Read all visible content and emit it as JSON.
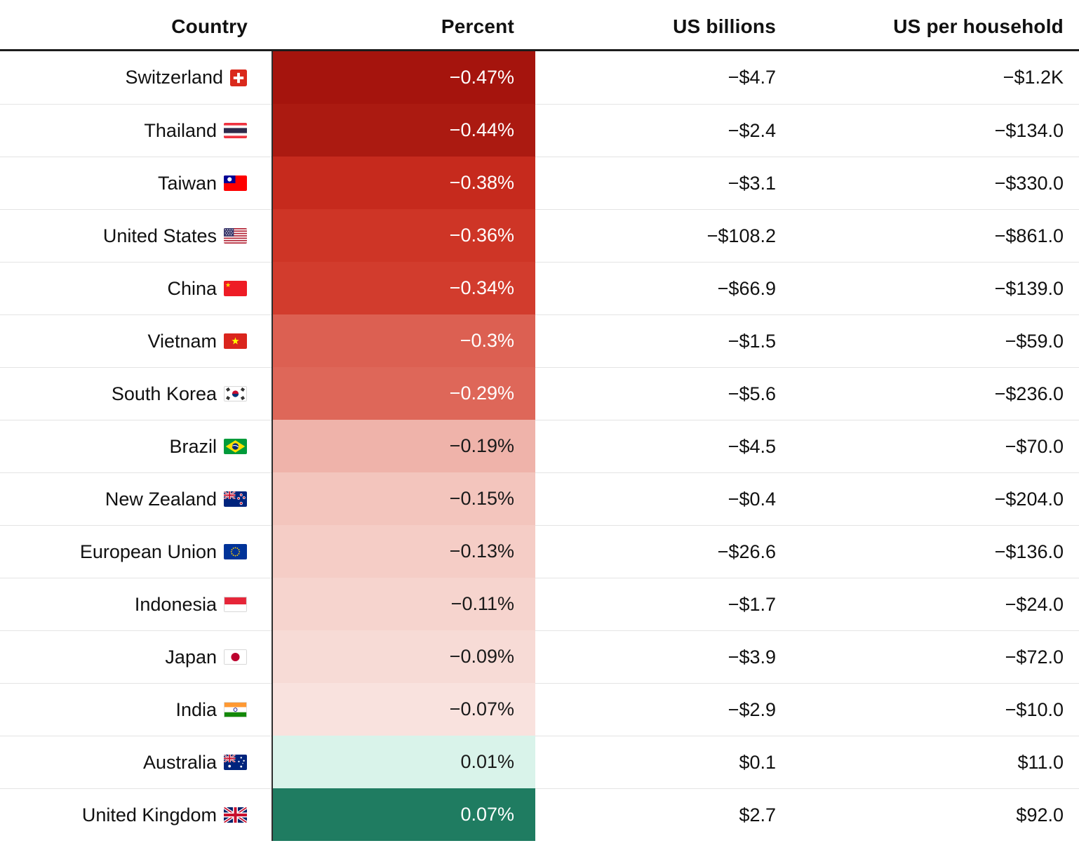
{
  "header": {
    "columns": [
      {
        "label": "Country"
      },
      {
        "label": "Percent"
      },
      {
        "label": "US billions"
      },
      {
        "label": "US per household"
      }
    ]
  },
  "chart_data": {
    "type": "table",
    "title": "",
    "columns": [
      "Country",
      "Percent",
      "US billions",
      "US per household"
    ],
    "color_scale": {
      "negative_dark": "#a5140d",
      "negative_light": "#f9e2de",
      "positive_light": "#d9f3ea",
      "positive_dark": "#1f7c61"
    },
    "rows": [
      {
        "country": "Switzerland",
        "flag": "switzerland-flag",
        "percent": "−0.47%",
        "percent_value": -0.47,
        "us_billions": "−$4.7",
        "us_billions_value": -4.7,
        "us_per_household": "−$1.2K",
        "us_per_household_value": -1200,
        "cell_color": "#a5140d",
        "text_color": "#ffffff"
      },
      {
        "country": "Thailand",
        "flag": "thailand-flag",
        "percent": "−0.44%",
        "percent_value": -0.44,
        "us_billions": "−$2.4",
        "us_billions_value": -2.4,
        "us_per_household": "−$134.0",
        "us_per_household_value": -134,
        "cell_color": "#ab1a11",
        "text_color": "#ffffff"
      },
      {
        "country": "Taiwan",
        "flag": "taiwan-flag",
        "percent": "−0.38%",
        "percent_value": -0.38,
        "us_billions": "−$3.1",
        "us_billions_value": -3.1,
        "us_per_household": "−$330.0",
        "us_per_household_value": -330,
        "cell_color": "#c62a1d",
        "text_color": "#ffffff"
      },
      {
        "country": "United States",
        "flag": "united-states-flag",
        "percent": "−0.36%",
        "percent_value": -0.36,
        "us_billions": "−$108.2",
        "us_billions_value": -108.2,
        "us_per_household": "−$861.0",
        "us_per_household_value": -861,
        "cell_color": "#ce3526",
        "text_color": "#ffffff"
      },
      {
        "country": "China",
        "flag": "china-flag",
        "percent": "−0.34%",
        "percent_value": -0.34,
        "us_billions": "−$66.9",
        "us_billions_value": -66.9,
        "us_per_household": "−$139.0",
        "us_per_household_value": -139,
        "cell_color": "#d23c2d",
        "text_color": "#ffffff"
      },
      {
        "country": "Vietnam",
        "flag": "vietnam-flag",
        "percent": "−0.3%",
        "percent_value": -0.3,
        "us_billions": "−$1.5",
        "us_billions_value": -1.5,
        "us_per_household": "−$59.0",
        "us_per_household_value": -59,
        "cell_color": "#dc6052",
        "text_color": "#ffffff"
      },
      {
        "country": "South Korea",
        "flag": "south-korea-flag",
        "percent": "−0.29%",
        "percent_value": -0.29,
        "us_billions": "−$5.6",
        "us_billions_value": -5.6,
        "us_per_household": "−$236.0",
        "us_per_household_value": -236,
        "cell_color": "#de6759",
        "text_color": "#ffffff"
      },
      {
        "country": "Brazil",
        "flag": "brazil-flag",
        "percent": "−0.19%",
        "percent_value": -0.19,
        "us_billions": "−$4.5",
        "us_billions_value": -4.5,
        "us_per_household": "−$70.0",
        "us_per_household_value": -70,
        "cell_color": "#efb3aa",
        "text_color": "#1a1a1a"
      },
      {
        "country": "New Zealand",
        "flag": "new-zealand-flag",
        "percent": "−0.15%",
        "percent_value": -0.15,
        "us_billions": "−$0.4",
        "us_billions_value": -0.4,
        "us_per_household": "−$204.0",
        "us_per_household_value": -204,
        "cell_color": "#f3c5bd",
        "text_color": "#1a1a1a"
      },
      {
        "country": "European Union",
        "flag": "european-union-flag",
        "percent": "−0.13%",
        "percent_value": -0.13,
        "us_billions": "−$26.6",
        "us_billions_value": -26.6,
        "us_per_household": "−$136.0",
        "us_per_household_value": -136,
        "cell_color": "#f5cdc6",
        "text_color": "#1a1a1a"
      },
      {
        "country": "Indonesia",
        "flag": "indonesia-flag",
        "percent": "−0.11%",
        "percent_value": -0.11,
        "us_billions": "−$1.7",
        "us_billions_value": -1.7,
        "us_per_household": "−$24.0",
        "us_per_household_value": -24,
        "cell_color": "#f6d4ce",
        "text_color": "#1a1a1a"
      },
      {
        "country": "Japan",
        "flag": "japan-flag",
        "percent": "−0.09%",
        "percent_value": -0.09,
        "us_billions": "−$3.9",
        "us_billions_value": -3.9,
        "us_per_household": "−$72.0",
        "us_per_household_value": -72,
        "cell_color": "#f7dbd6",
        "text_color": "#1a1a1a"
      },
      {
        "country": "India",
        "flag": "india-flag",
        "percent": "−0.07%",
        "percent_value": -0.07,
        "us_billions": "−$2.9",
        "us_billions_value": -2.9,
        "us_per_household": "−$10.0",
        "us_per_household_value": -10,
        "cell_color": "#f9e2de",
        "text_color": "#1a1a1a"
      },
      {
        "country": "Australia",
        "flag": "australia-flag",
        "percent": "0.01%",
        "percent_value": 0.01,
        "us_billions": "$0.1",
        "us_billions_value": 0.1,
        "us_per_household": "$11.0",
        "us_per_household_value": 11,
        "cell_color": "#d9f3ea",
        "text_color": "#1a1a1a"
      },
      {
        "country": "United Kingdom",
        "flag": "united-kingdom-flag",
        "percent": "0.07%",
        "percent_value": 0.07,
        "us_billions": "$2.7",
        "us_billions_value": 2.7,
        "us_per_household": "$92.0",
        "us_per_household_value": 92,
        "cell_color": "#1f7c61",
        "text_color": "#ffffff"
      }
    ]
  }
}
